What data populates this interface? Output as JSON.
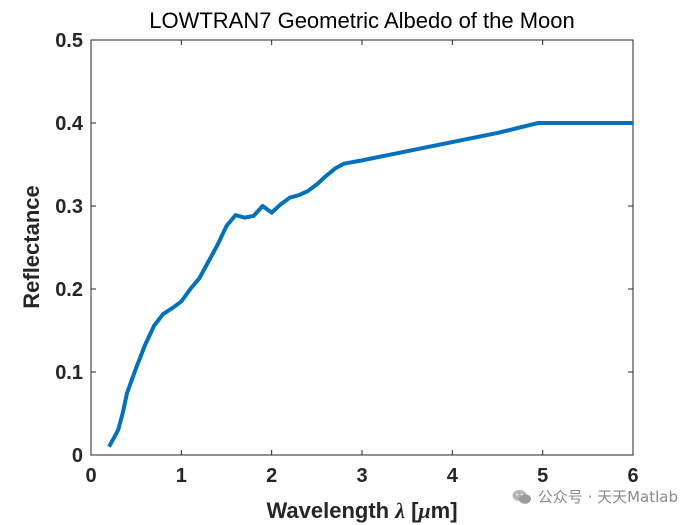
{
  "chart_data": {
    "type": "line",
    "title": "LOWTRAN7 Geometric Albedo of the Moon",
    "xlabel_text": "Wavelength ",
    "xlabel_symbol": "λ",
    "xlabel_unit_open": " [",
    "xlabel_mu": "μ",
    "xlabel_unit_close": "m]",
    "ylabel": "Reflectance",
    "xlim": [
      0,
      6
    ],
    "ylim": [
      0,
      0.5
    ],
    "xticks": [
      0,
      1,
      2,
      3,
      4,
      5,
      6
    ],
    "xtick_labels": [
      "0",
      "1",
      "2",
      "3",
      "4",
      "5",
      "6"
    ],
    "yticks": [
      0,
      0.1,
      0.2,
      0.3,
      0.4,
      0.5
    ],
    "ytick_labels": [
      "0",
      "0.1",
      "0.2",
      "0.3",
      "0.4",
      "0.5"
    ],
    "grid": false,
    "series": [
      {
        "color": "#0072BD",
        "x": [
          0.2,
          0.25,
          0.3,
          0.35,
          0.4,
          0.5,
          0.6,
          0.7,
          0.8,
          0.9,
          1.0,
          1.1,
          1.2,
          1.3,
          1.4,
          1.5,
          1.6,
          1.7,
          1.8,
          1.85,
          1.9,
          2.0,
          2.1,
          2.2,
          2.3,
          2.4,
          2.5,
          2.6,
          2.7,
          2.8,
          3.0,
          3.5,
          4.0,
          4.5,
          4.95,
          5.0,
          5.5,
          6.0
        ],
        "y": [
          0.01,
          0.02,
          0.03,
          0.05,
          0.075,
          0.105,
          0.133,
          0.156,
          0.17,
          0.177,
          0.185,
          0.2,
          0.213,
          0.233,
          0.253,
          0.276,
          0.289,
          0.286,
          0.288,
          0.294,
          0.3,
          0.292,
          0.302,
          0.31,
          0.313,
          0.318,
          0.326,
          0.336,
          0.345,
          0.351,
          0.355,
          0.366,
          0.377,
          0.388,
          0.4,
          0.4,
          0.4,
          0.4
        ]
      }
    ]
  },
  "watermark": {
    "icon": "wechat-icon",
    "text": "公众号 · 天天Matlab"
  }
}
